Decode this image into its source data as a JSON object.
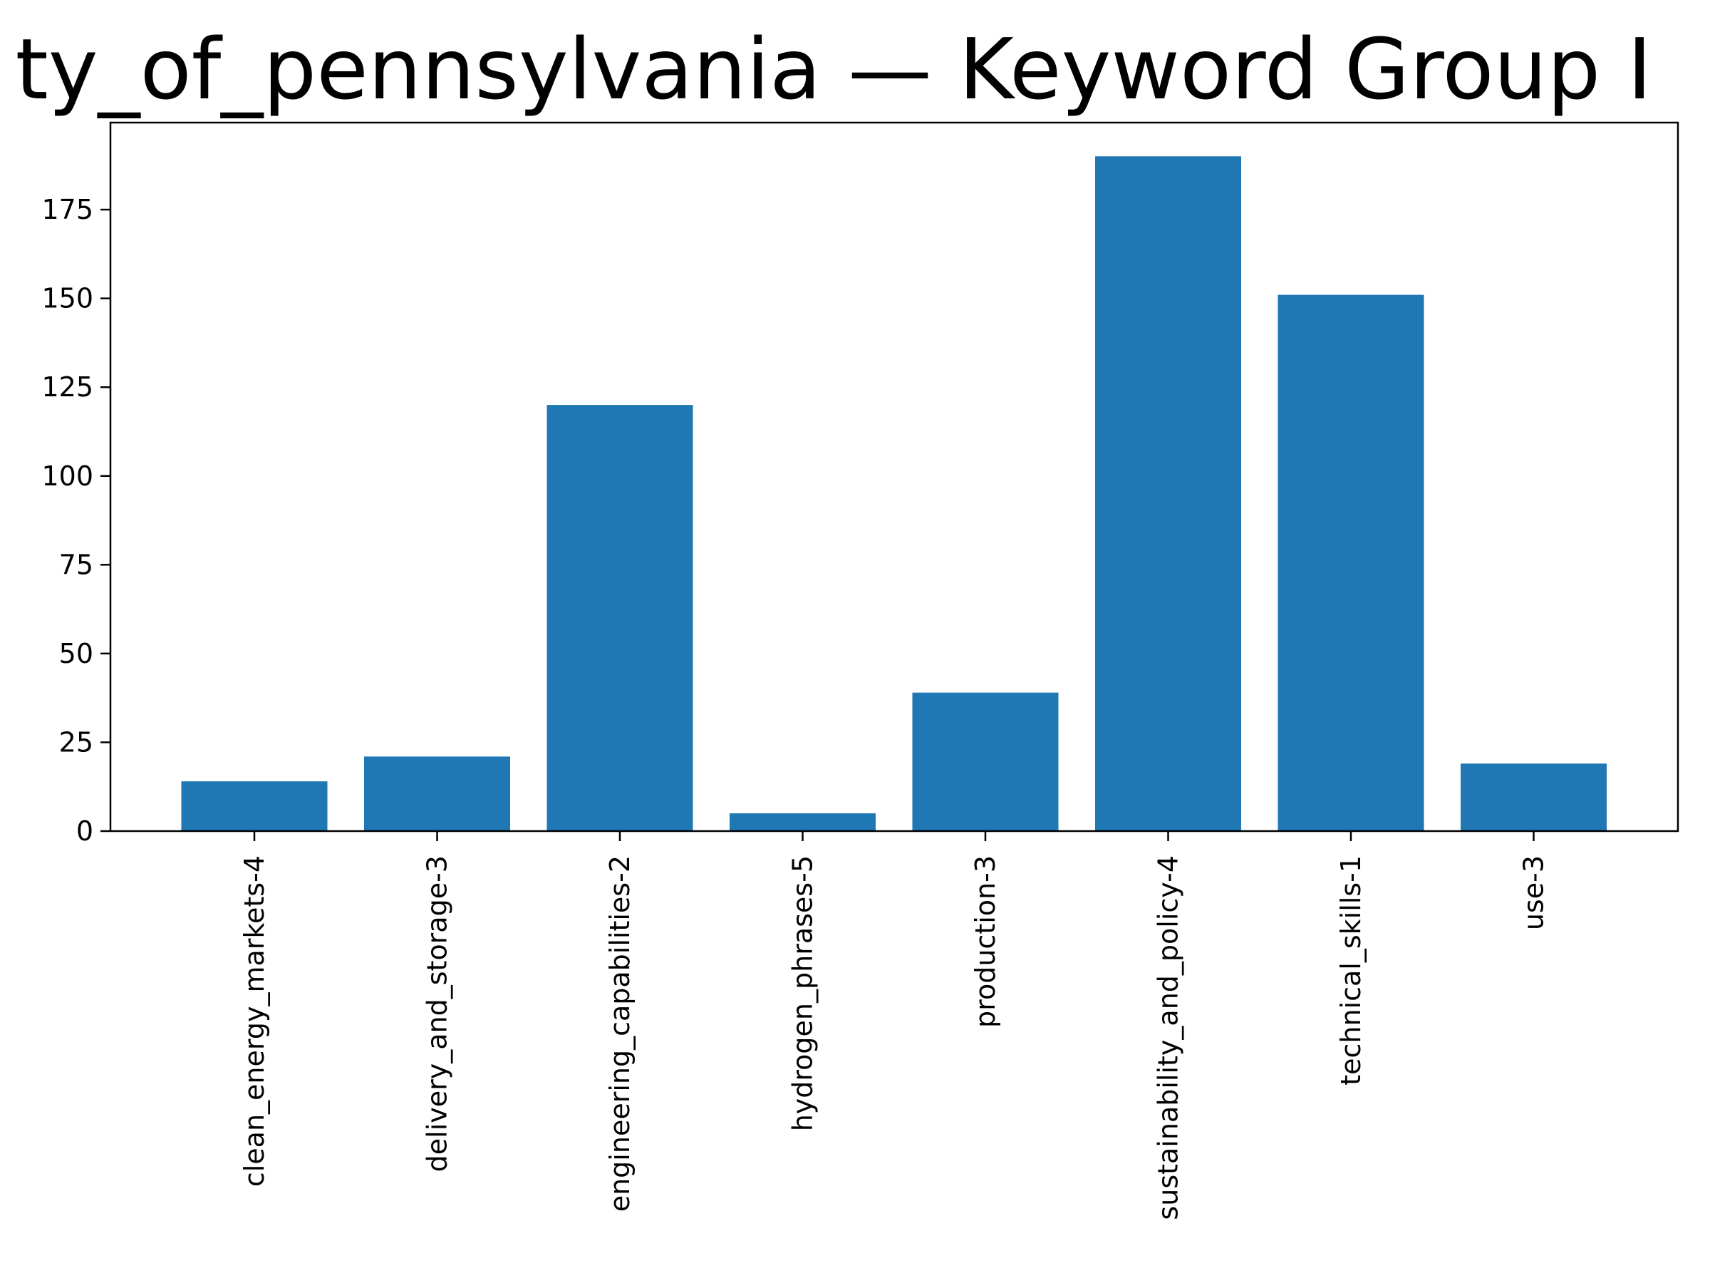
{
  "chart_data": {
    "type": "bar",
    "title": "ty_of_pennsylvania — Keyword Group I",
    "xlabel": "",
    "ylabel": "",
    "categories": [
      "clean_energy_markets-4",
      "delivery_and_storage-3",
      "engineering_capabilities-2",
      "hydrogen_phrases-5",
      "production-3",
      "sustainability_and_policy-4",
      "technical_skills-1",
      "use-3"
    ],
    "values": [
      14,
      21,
      120,
      5,
      39,
      190,
      151,
      19
    ],
    "ylim": [
      0,
      199.5
    ],
    "yticks": [
      0,
      25,
      50,
      75,
      100,
      125,
      150,
      175
    ],
    "bar_color": "#1f77b4",
    "grid": false,
    "legend": "none"
  }
}
